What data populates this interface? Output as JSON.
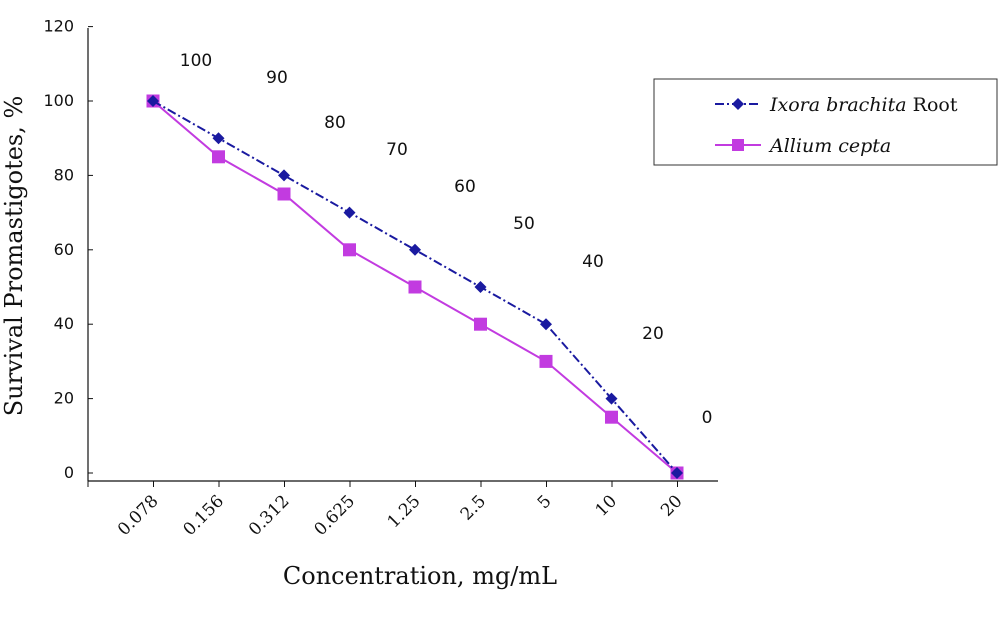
{
  "chart_data": {
    "type": "line",
    "title": "",
    "xlabel": "Concentration, mg/mL",
    "ylabel": "Survival Promastigotes, %",
    "categories": [
      "0.078",
      "0.156",
      "0.312",
      "0.625",
      "1.25",
      "2.5",
      "5",
      "10",
      "20"
    ],
    "ylim": [
      0,
      120
    ],
    "yticks": [
      0,
      20,
      40,
      60,
      80,
      100,
      120
    ],
    "grid": false,
    "legend_position": "top-right",
    "series": [
      {
        "name_italic": "Ixora brachita",
        "name_suffix": " Root",
        "color": "#1a1aa0",
        "marker": "diamond",
        "line_style": "dash-dot",
        "values": [
          100,
          90,
          80,
          70,
          60,
          50,
          40,
          20,
          0
        ]
      },
      {
        "name_italic": "Allium cepta",
        "name_suffix": "",
        "color": "#c23be0",
        "marker": "square",
        "line_style": "solid",
        "values": [
          100,
          85,
          75,
          60,
          50,
          40,
          30,
          15,
          0
        ]
      }
    ],
    "annotations": [
      "100",
      "90",
      "80",
      "70",
      "60",
      "50",
      "40",
      "20",
      "0"
    ]
  }
}
